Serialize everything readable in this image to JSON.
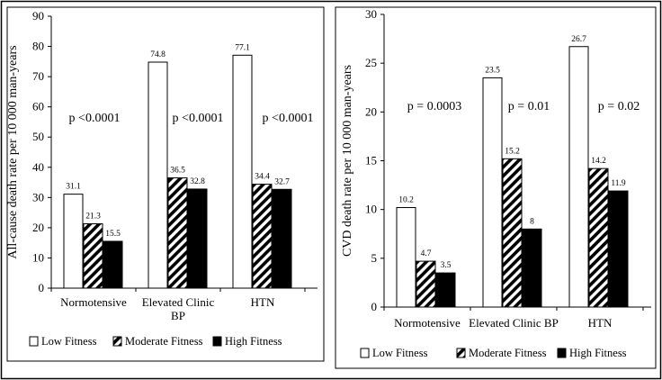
{
  "colors": {
    "low": "#ffffff",
    "moderate": "hatch",
    "high": "#000000",
    "frame": "#000000"
  },
  "legend": [
    "Low Fitness",
    "Moderate Fitness",
    "High Fitness"
  ],
  "chart_data": [
    {
      "type": "bar",
      "ylabel": "All-cause death rate per 10 000 man-years",
      "ylim": [
        0,
        90
      ],
      "yticks": [
        0,
        10,
        20,
        30,
        40,
        50,
        60,
        70,
        80,
        90
      ],
      "categories": [
        "Normotensive",
        "Elevated Clinic BP",
        "HTN"
      ],
      "series": [
        {
          "name": "Low Fitness",
          "values": [
            31.1,
            74.8,
            77.1
          ],
          "labels": [
            "31.1",
            "74.8",
            "77.1"
          ]
        },
        {
          "name": "Moderate Fitness",
          "values": [
            21.3,
            36.5,
            34.4
          ],
          "labels": [
            "21.3",
            "36.5",
            "34.4"
          ]
        },
        {
          "name": "High Fitness",
          "values": [
            15.5,
            32.8,
            32.7
          ],
          "labels": [
            "15.5",
            "32.8",
            "32.7"
          ]
        }
      ],
      "annotations": [
        "p <0.0001",
        "p <0.0001",
        "p <0.0001"
      ],
      "grid": false,
      "legend_position": "bottom"
    },
    {
      "type": "bar",
      "ylabel": "CVD death rate per 10 000 man-years",
      "ylim": [
        0,
        30
      ],
      "yticks": [
        0,
        5,
        10,
        15,
        20,
        25,
        30
      ],
      "categories": [
        "Normotensive",
        "Elevated Clinic BP",
        "HTN"
      ],
      "series": [
        {
          "name": "Low Fitness",
          "values": [
            10.2,
            23.5,
            26.7
          ],
          "labels": [
            "10.2",
            "23.5",
            "26.7"
          ]
        },
        {
          "name": "Moderate Fitness",
          "values": [
            4.7,
            15.2,
            14.2
          ],
          "labels": [
            "4.7",
            "15.2",
            "14.2"
          ]
        },
        {
          "name": "High Fitness",
          "values": [
            3.5,
            8,
            11.9
          ],
          "labels": [
            "3.5",
            "8",
            "11.9"
          ]
        }
      ],
      "annotations": [
        "p = 0.0003",
        "p = 0.01",
        "p = 0.02"
      ],
      "grid": false,
      "legend_position": "bottom"
    }
  ]
}
